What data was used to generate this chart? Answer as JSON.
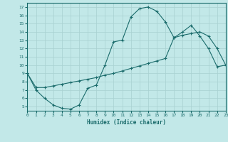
{
  "xlabel": "Humidex (Indice chaleur)",
  "bg_color": "#c2e8e8",
  "line_color": "#1a6b6b",
  "grid_color": "#a8d0d0",
  "line1": {
    "x": [
      0,
      1,
      2,
      3,
      4,
      5,
      6,
      7,
      8,
      9,
      10,
      11,
      12,
      13,
      14,
      15,
      16,
      17,
      18,
      19,
      20,
      21,
      22,
      23
    ],
    "y": [
      9,
      7,
      6,
      5.2,
      4.8,
      4.7,
      5.2,
      7.2,
      7.6,
      10.0,
      12.8,
      13.0,
      15.8,
      16.8,
      17.0,
      16.5,
      15.2,
      13.3,
      14.0,
      14.8,
      13.5,
      12.0,
      9.8,
      10.0
    ]
  },
  "line2": {
    "x": [
      0,
      1,
      2,
      3,
      4,
      5,
      6,
      7,
      8,
      9,
      10,
      11,
      12,
      13,
      14,
      15,
      16,
      17,
      18,
      19,
      20,
      21,
      22,
      23
    ],
    "y": [
      9.0,
      7.3,
      7.3,
      7.5,
      7.7,
      7.9,
      8.1,
      8.3,
      8.5,
      8.8,
      9.0,
      9.3,
      9.6,
      9.9,
      10.2,
      10.5,
      10.8,
      13.3,
      13.6,
      13.8,
      14.0,
      13.5,
      12.0,
      10.0
    ]
  },
  "xlim": [
    0,
    23
  ],
  "ylim": [
    4.5,
    17.5
  ],
  "yticks": [
    5,
    6,
    7,
    8,
    9,
    10,
    11,
    12,
    13,
    14,
    15,
    16,
    17
  ],
  "xticks": [
    0,
    1,
    2,
    3,
    4,
    5,
    6,
    7,
    8,
    9,
    10,
    11,
    12,
    13,
    14,
    15,
    16,
    17,
    18,
    19,
    20,
    21,
    22,
    23
  ]
}
